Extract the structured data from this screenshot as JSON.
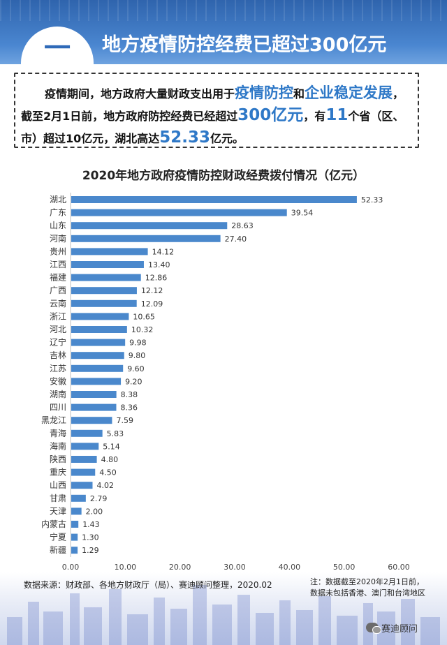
{
  "header": {
    "section_number": "一",
    "headline": "地方疫情防控经费已超过300亿元"
  },
  "summary": {
    "part1": "疫情期间，地方政府大量财政支出用于",
    "hl1": "疫情防控",
    "part2": "和",
    "hl2": "企业稳定发展",
    "part3": "，截至2月1日前，地方政府防控经费已经超过",
    "hl3": "300亿元",
    "part4": "，有",
    "hl4": "11",
    "part5": "个省（区、市）超过10亿元，湖北高达",
    "hl5": "52.33",
    "part6": "亿元。"
  },
  "chart_data": {
    "type": "bar",
    "orientation": "horizontal",
    "title": "2020年地方政府疫情防控财政经费拨付情况（亿元）",
    "categories": [
      "湖北",
      "广东",
      "山东",
      "河南",
      "贵州",
      "江西",
      "福建",
      "广西",
      "云南",
      "浙江",
      "河北",
      "辽宁",
      "吉林",
      "江苏",
      "安徽",
      "湖南",
      "四川",
      "黑龙江",
      "青海",
      "海南",
      "陕西",
      "重庆",
      "山西",
      "甘肃",
      "天津",
      "内蒙古",
      "宁夏",
      "新疆"
    ],
    "values": [
      52.33,
      39.54,
      28.63,
      27.4,
      14.12,
      13.4,
      12.86,
      12.12,
      12.09,
      10.65,
      10.32,
      9.98,
      9.8,
      9.6,
      9.2,
      8.38,
      8.36,
      7.59,
      5.83,
      5.14,
      4.8,
      4.5,
      4.02,
      2.79,
      2.0,
      1.43,
      1.3,
      1.29
    ],
    "value_labels": [
      "52.33",
      "39.54",
      "28.63",
      "27.40",
      "14.12",
      "13.40",
      "12.86",
      "12.12",
      "12.09",
      "10.65",
      "10.32",
      "9.98",
      "9.80",
      "9.60",
      "9.20",
      "8.38",
      "8.36",
      "7.59",
      "5.83",
      "5.14",
      "4.80",
      "4.50",
      "4.02",
      "2.79",
      "2.00",
      "1.43",
      "1.30",
      "1.29"
    ],
    "x_ticks": [
      "0.00",
      "10.00",
      "20.00",
      "30.00",
      "40.00",
      "50.00",
      "60.00"
    ],
    "xlim": [
      0,
      60
    ],
    "grid": false,
    "bar_color": "#4a88cc"
  },
  "footer": {
    "source": "数据来源：财政部、各地方财政厅（局）、赛迪顾问整理，2020.02",
    "note_line1": "注：数据截至2020年2月1日前，",
    "note_line2": "数据未包括香港、澳门和台湾地区",
    "brand": "赛迪顾问"
  },
  "colors": {
    "header_blue": "#2f64ad",
    "accent_blue": "#2e78c7",
    "bar_blue": "#4a88cc"
  }
}
